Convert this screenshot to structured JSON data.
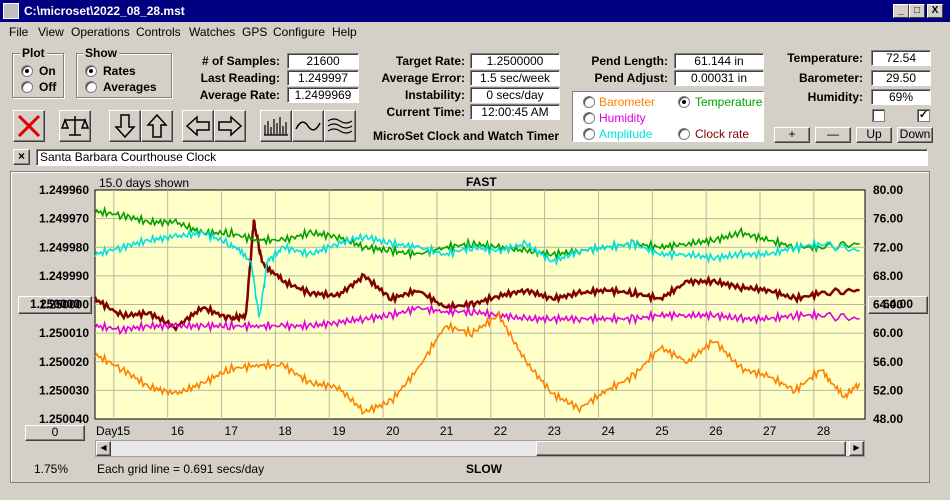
{
  "window": {
    "title": "C:\\microset\\2022_08_28.mst",
    "min": "_",
    "max": "□",
    "close": "X"
  },
  "menu": [
    "File",
    "View",
    "Operations",
    "Controls",
    "Watches",
    "GPS",
    "Configure",
    "Help"
  ],
  "plot_group": {
    "title": "Plot",
    "options": [
      {
        "label": "On",
        "selected": true
      },
      {
        "label": "Off",
        "selected": false
      }
    ]
  },
  "show_group": {
    "title": "Show",
    "options": [
      {
        "label": "Rates",
        "selected": true
      },
      {
        "label": "Averages",
        "selected": false
      }
    ]
  },
  "stats": [
    {
      "label": "# of Samples:",
      "value": "21600"
    },
    {
      "label": "Last Reading:",
      "value": "1.249997"
    },
    {
      "label": "Average Rate:",
      "value": "1.2499969"
    }
  ],
  "rates": [
    {
      "label": "Target Rate:",
      "value": "1.2500000"
    },
    {
      "label": "Average Error:",
      "value": "1.5 sec/week"
    },
    {
      "label": "Instability:",
      "value": "0 secs/day"
    },
    {
      "label": "Current Time:",
      "value": "12:00:45 AM"
    }
  ],
  "app_subtitle": "MicroSet Clock and Watch Timer",
  "pend": [
    {
      "label": "Pend Length:",
      "value": "61.144 in"
    },
    {
      "label": "Pend Adjust:",
      "value": "0.00031 in"
    }
  ],
  "env": [
    {
      "label": "Temperature:",
      "value": "72.54"
    },
    {
      "label": "Barometer:",
      "value": "29.50"
    },
    {
      "label": "Humidity:",
      "value": "69%"
    }
  ],
  "display_options": [
    {
      "label": "Barometer",
      "selected": false,
      "color": "#ff8000"
    },
    {
      "label": "Temperature",
      "selected": true,
      "color": "#00a000"
    },
    {
      "label": "Humidity",
      "selected": false,
      "color": "#e000e0"
    },
    {
      "label": "Amplitude",
      "selected": false,
      "color": "#00e0e0"
    },
    {
      "label": "Clock rate",
      "selected": false,
      "color": "#800000"
    }
  ],
  "scale_buttons": [
    "+",
    "—",
    "Up",
    "Down"
  ],
  "checkboxes": [
    {
      "checked": false
    },
    {
      "checked": true
    }
  ],
  "clock_name": {
    "close": "×",
    "value": "Santa Barbara Courthouse Clock"
  },
  "chart_header": {
    "days_shown": "15.0 days shown",
    "top": "FAST",
    "bottom": "SLOW",
    "grid_note": "Each grid line = 0.691 secs/day",
    "left_badge": "1.250000",
    "right_badge": "64.00",
    "zero_btn": "0",
    "percent": "1.75%",
    "day_label": "Day:"
  },
  "icons": [
    "cancel-icon",
    "balance-icon",
    "arrow-down-icon",
    "arrow-up-icon",
    "arrow-left-icon",
    "arrow-right-icon",
    "histogram-icon",
    "wave-icon",
    "multi-wave-icon"
  ],
  "chart_data": {
    "type": "line",
    "x_label": "Day:",
    "xlim": [
      14.5,
      28.8
    ],
    "x_ticks": [
      15,
      16,
      17,
      18,
      19,
      20,
      21,
      22,
      23,
      24,
      25,
      26,
      27,
      28
    ],
    "y_left_ticks": [
      "1.249960",
      "1.249970",
      "1.249980",
      "1.249990",
      "1.250000",
      "1.250010",
      "1.250020",
      "1.250030",
      "1.250040"
    ],
    "y_left_range": [
      1.24996,
      1.25004
    ],
    "y_right_ticks": [
      "80.00",
      "76.00",
      "72.00",
      "68.00",
      "64.00",
      "60.00",
      "56.00",
      "52.00",
      "48.00"
    ],
    "y_right_range": [
      48,
      80
    ],
    "series": [
      {
        "color": "#800000",
        "axis": "left",
        "points": [
          [
            14.5,
            1.249998
          ],
          [
            15,
            1.250004
          ],
          [
            15.5,
            1.250003
          ],
          [
            16,
            1.250008
          ],
          [
            16.5,
            1.250001
          ],
          [
            17,
            1.250005
          ],
          [
            17.3,
            1.250004
          ],
          [
            17.45,
            1.249971
          ],
          [
            17.6,
            1.249985
          ],
          [
            18,
            1.249992
          ],
          [
            18.5,
            1.249996
          ],
          [
            19,
            1.249997
          ],
          [
            19.5,
            1.24999
          ],
          [
            20,
            1.249998
          ],
          [
            20.5,
            1.249995
          ],
          [
            21,
            1.250001
          ],
          [
            21.5,
            1.25
          ],
          [
            22,
            1.249997
          ],
          [
            22.5,
            1.249995
          ],
          [
            23,
            1.249998
          ],
          [
            23.5,
            1.249996
          ],
          [
            24,
            1.249995
          ],
          [
            24.5,
            1.249996
          ],
          [
            25,
            1.249998
          ],
          [
            25.5,
            1.249992
          ],
          [
            26,
            1.249992
          ],
          [
            26.5,
            1.249994
          ],
          [
            27,
            1.249995
          ],
          [
            27.5,
            1.249998
          ],
          [
            28,
            1.249996
          ],
          [
            28.7,
            1.249995
          ]
        ]
      },
      {
        "color": "#00a000",
        "axis": "right",
        "points": [
          [
            14.5,
            77.0
          ],
          [
            15,
            76.5
          ],
          [
            15.5,
            75.5
          ],
          [
            16,
            75.5
          ],
          [
            16.5,
            74.0
          ],
          [
            17,
            74.0
          ],
          [
            17.5,
            73.0
          ],
          [
            18,
            73.0
          ],
          [
            18.5,
            74.0
          ],
          [
            19,
            73.5
          ],
          [
            19.5,
            72.0
          ],
          [
            20,
            71.5
          ],
          [
            20.5,
            71.0
          ],
          [
            21,
            72.0
          ],
          [
            21.5,
            72.5
          ],
          [
            22,
            72.0
          ],
          [
            22.5,
            71.5
          ],
          [
            23,
            71.0
          ],
          [
            23.5,
            71.5
          ],
          [
            24,
            72.0
          ],
          [
            24.5,
            72.5
          ],
          [
            25,
            72.0
          ],
          [
            25.5,
            72.5
          ],
          [
            26,
            73.0
          ],
          [
            26.5,
            74.0
          ],
          [
            27,
            73.0
          ],
          [
            27.5,
            72.0
          ],
          [
            28,
            72.0
          ],
          [
            28.7,
            72.5
          ]
        ]
      },
      {
        "color": "#00e0e0",
        "axis": "right",
        "points": [
          [
            14.5,
            71.0
          ],
          [
            15,
            72.0
          ],
          [
            15.5,
            73.0
          ],
          [
            16,
            73.5
          ],
          [
            16.5,
            74.0
          ],
          [
            17,
            72.5
          ],
          [
            17.4,
            70.0
          ],
          [
            17.55,
            62.0
          ],
          [
            17.7,
            70.0
          ],
          [
            18,
            72.0
          ],
          [
            18.5,
            71.0
          ],
          [
            19,
            72.5
          ],
          [
            19.5,
            73.5
          ],
          [
            20,
            72.5
          ],
          [
            20.5,
            72.0
          ],
          [
            21,
            71.0
          ],
          [
            21.5,
            72.0
          ],
          [
            22,
            71.5
          ],
          [
            22.5,
            72.5
          ],
          [
            23,
            70.0
          ],
          [
            23.5,
            71.5
          ],
          [
            24,
            72.0
          ],
          [
            24.5,
            72.5
          ],
          [
            25,
            71.0
          ],
          [
            25.5,
            71.0
          ],
          [
            26,
            70.5
          ],
          [
            26.5,
            71.0
          ],
          [
            27,
            71.0
          ],
          [
            27.5,
            72.0
          ],
          [
            28,
            72.5
          ],
          [
            28.7,
            71.5
          ]
        ]
      },
      {
        "color": "#e000e0",
        "axis": "right",
        "points": [
          [
            14.5,
            61.0
          ],
          [
            15,
            60.5
          ],
          [
            15.5,
            61.0
          ],
          [
            16,
            61.0
          ],
          [
            16.5,
            61.0
          ],
          [
            17,
            61.0
          ],
          [
            17.5,
            61.0
          ],
          [
            18,
            61.0
          ],
          [
            18.5,
            61.0
          ],
          [
            19,
            61.5
          ],
          [
            19.5,
            62.0
          ],
          [
            20,
            62.5
          ],
          [
            20.5,
            63.5
          ],
          [
            21,
            63.0
          ],
          [
            21.5,
            63.0
          ],
          [
            22,
            62.5
          ],
          [
            22.5,
            62.0
          ],
          [
            23,
            62.0
          ],
          [
            23.5,
            62.0
          ],
          [
            24,
            62.0
          ],
          [
            24.5,
            62.0
          ],
          [
            25,
            62.5
          ],
          [
            25.5,
            62.5
          ],
          [
            26,
            62.5
          ],
          [
            26.5,
            62.0
          ],
          [
            27,
            62.0
          ],
          [
            27.5,
            62.5
          ],
          [
            28,
            62.5
          ],
          [
            28.7,
            62.0
          ]
        ]
      },
      {
        "color": "#ff8000",
        "axis": "right",
        "points": [
          [
            14.5,
            57.0
          ],
          [
            15,
            55.0
          ],
          [
            15.5,
            52.5
          ],
          [
            16,
            51.5
          ],
          [
            16.5,
            53.0
          ],
          [
            17,
            55.0
          ],
          [
            17.5,
            55.5
          ],
          [
            18,
            55.5
          ],
          [
            18.5,
            53.0
          ],
          [
            19,
            52.5
          ],
          [
            19.5,
            49.0
          ],
          [
            20,
            50.5
          ],
          [
            20.5,
            55.0
          ],
          [
            21,
            61.0
          ],
          [
            21.5,
            60.0
          ],
          [
            22,
            62.5
          ],
          [
            22.5,
            56.0
          ],
          [
            23,
            51.5
          ],
          [
            23.5,
            49.5
          ],
          [
            24,
            52.0
          ],
          [
            24.5,
            54.0
          ],
          [
            25,
            58.0
          ],
          [
            25.5,
            56.0
          ],
          [
            26,
            59.0
          ],
          [
            26.5,
            55.0
          ],
          [
            27,
            54.0
          ],
          [
            27.5,
            52.0
          ],
          [
            28,
            55.0
          ],
          [
            28.4,
            51.0
          ],
          [
            28.7,
            53.0
          ]
        ]
      }
    ]
  }
}
